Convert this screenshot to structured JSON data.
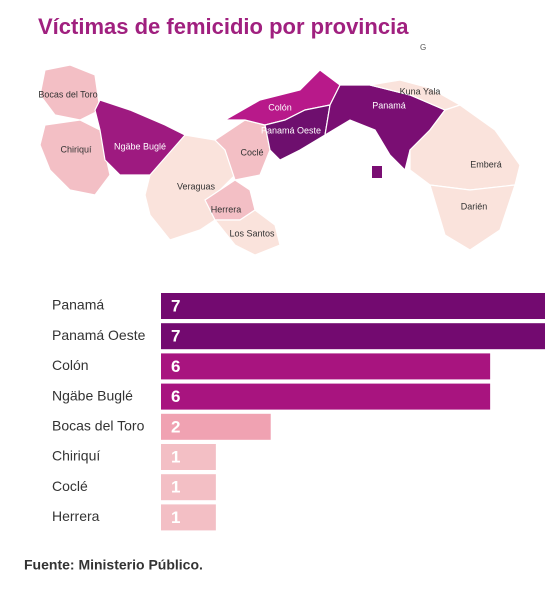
{
  "chart_data": {
    "type": "bar",
    "title": "Víctimas de femicidio por provincia",
    "categories": [
      "Panamá",
      "Panamá Oeste",
      "Colón",
      "Ngäbe Buglé",
      "Bocas del Toro",
      "Chiriquí",
      "Coclé",
      "Herrera"
    ],
    "values": [
      7,
      7,
      6,
      6,
      2,
      1,
      1,
      1
    ],
    "colors": [
      "#730a70",
      "#730a70",
      "#a8147f",
      "#a8147f",
      "#f0a2b2",
      "#f3bfc5",
      "#f3bfc5",
      "#f3bfc5"
    ],
    "source": "Fuente: Ministerio Público."
  },
  "map": {
    "logo": "G",
    "labels": [
      "Bocas del Toro",
      "Chiriquí",
      "Ngäbe Buglé",
      "Colón",
      "Panamá Oeste",
      "Panamá",
      "Kuna Yala",
      "Coclé",
      "Veraguas",
      "Herrera",
      "Los Santos",
      "Emberá",
      "Darién"
    ]
  }
}
